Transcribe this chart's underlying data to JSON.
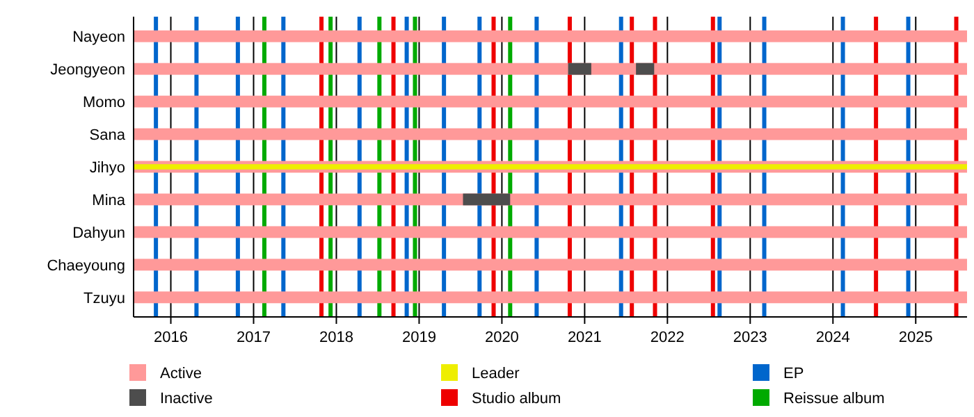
{
  "chart_data": {
    "type": "bar",
    "orientation": "horizontal",
    "categories": [
      "Nayeon",
      "Jeongyeon",
      "Momo",
      "Sana",
      "Jihyo",
      "Mina",
      "Dahyun",
      "Chaeyoung",
      "Tzuyu"
    ],
    "series": [
      {
        "name": "Active",
        "color": "#ff9999",
        "base": [
          2015.55,
          2015.55,
          2015.55,
          2015.55,
          2015.55,
          2015.55,
          2015.55,
          2015.55,
          2015.55
        ],
        "values": [
          10.07,
          10.07,
          10.07,
          10.07,
          10.07,
          10.07,
          10.07,
          10.07,
          10.07
        ]
      },
      {
        "name": "Inactive",
        "color": "#4d4d4d",
        "base": [
          null,
          2020.8,
          null,
          null,
          null,
          2019.53,
          null,
          null,
          null
        ],
        "values": [
          null,
          0.28,
          null,
          null,
          null,
          0.57,
          null,
          null,
          null
        ]
      },
      {
        "color": "#4d4d4d",
        "base": [
          null,
          2021.62,
          null,
          null,
          null,
          null,
          null,
          null,
          null
        ],
        "values": [
          null,
          0.22,
          null,
          null,
          null,
          null,
          null,
          null,
          null
        ]
      },
      {
        "name": "Leader",
        "color": "#eeee00",
        "base": [
          null,
          null,
          null,
          null,
          2015.55,
          null,
          null,
          null,
          null
        ],
        "values": [
          null,
          null,
          null,
          null,
          10.07,
          null,
          null,
          null,
          null
        ]
      }
    ],
    "ref_lines": [
      {
        "axis": "x",
        "value": 2017.82,
        "label": "Studio album",
        "color": "#ee0000"
      },
      {
        "axis": "x",
        "value": 2018.69,
        "color": "#ee0000"
      },
      {
        "axis": "x",
        "value": 2019.9,
        "color": "#ee0000"
      },
      {
        "axis": "x",
        "value": 2020.82,
        "color": "#ee0000"
      },
      {
        "axis": "x",
        "value": 2021.57,
        "color": "#ee0000"
      },
      {
        "axis": "x",
        "value": 2021.85,
        "color": "#ee0000"
      },
      {
        "axis": "x",
        "value": 2022.55,
        "color": "#ee0000"
      },
      {
        "axis": "x",
        "value": 2024.52,
        "color": "#ee0000"
      },
      {
        "axis": "x",
        "value": 2025.49,
        "color": "#ee0000"
      },
      {
        "axis": "x",
        "value": 2015.82,
        "label": "EP",
        "color": "#0066cc"
      },
      {
        "axis": "x",
        "value": 2016.31,
        "color": "#0066cc"
      },
      {
        "axis": "x",
        "value": 2016.81,
        "color": "#0066cc"
      },
      {
        "axis": "x",
        "value": 2017.36,
        "color": "#0066cc"
      },
      {
        "axis": "x",
        "value": 2018.28,
        "color": "#0066cc"
      },
      {
        "axis": "x",
        "value": 2018.85,
        "color": "#0066cc"
      },
      {
        "axis": "x",
        "value": 2019.3,
        "color": "#0066cc"
      },
      {
        "axis": "x",
        "value": 2019.73,
        "color": "#0066cc"
      },
      {
        "axis": "x",
        "value": 2020.42,
        "color": "#0066cc"
      },
      {
        "axis": "x",
        "value": 2021.44,
        "color": "#0066cc"
      },
      {
        "axis": "x",
        "value": 2022.63,
        "color": "#0066cc"
      },
      {
        "axis": "x",
        "value": 2023.17,
        "color": "#0066cc"
      },
      {
        "axis": "x",
        "value": 2024.12,
        "color": "#0066cc"
      },
      {
        "axis": "x",
        "value": 2024.91,
        "color": "#0066cc"
      },
      {
        "axis": "x",
        "value": 2017.13,
        "label": "Reissue album",
        "color": "#00aa00"
      },
      {
        "axis": "x",
        "value": 2017.93,
        "color": "#00aa00"
      },
      {
        "axis": "x",
        "value": 2018.52,
        "color": "#00aa00"
      },
      {
        "axis": "x",
        "value": 2018.95,
        "color": "#00aa00"
      },
      {
        "axis": "x",
        "value": 2020.1,
        "color": "#00aa00"
      }
    ],
    "xlim": [
      2015.55,
      2025.62
    ],
    "xticks": [
      2016,
      2017,
      2018,
      2019,
      2020,
      2021,
      2022,
      2023,
      2024,
      2025
    ],
    "grid": "x",
    "legend": "bottom"
  }
}
